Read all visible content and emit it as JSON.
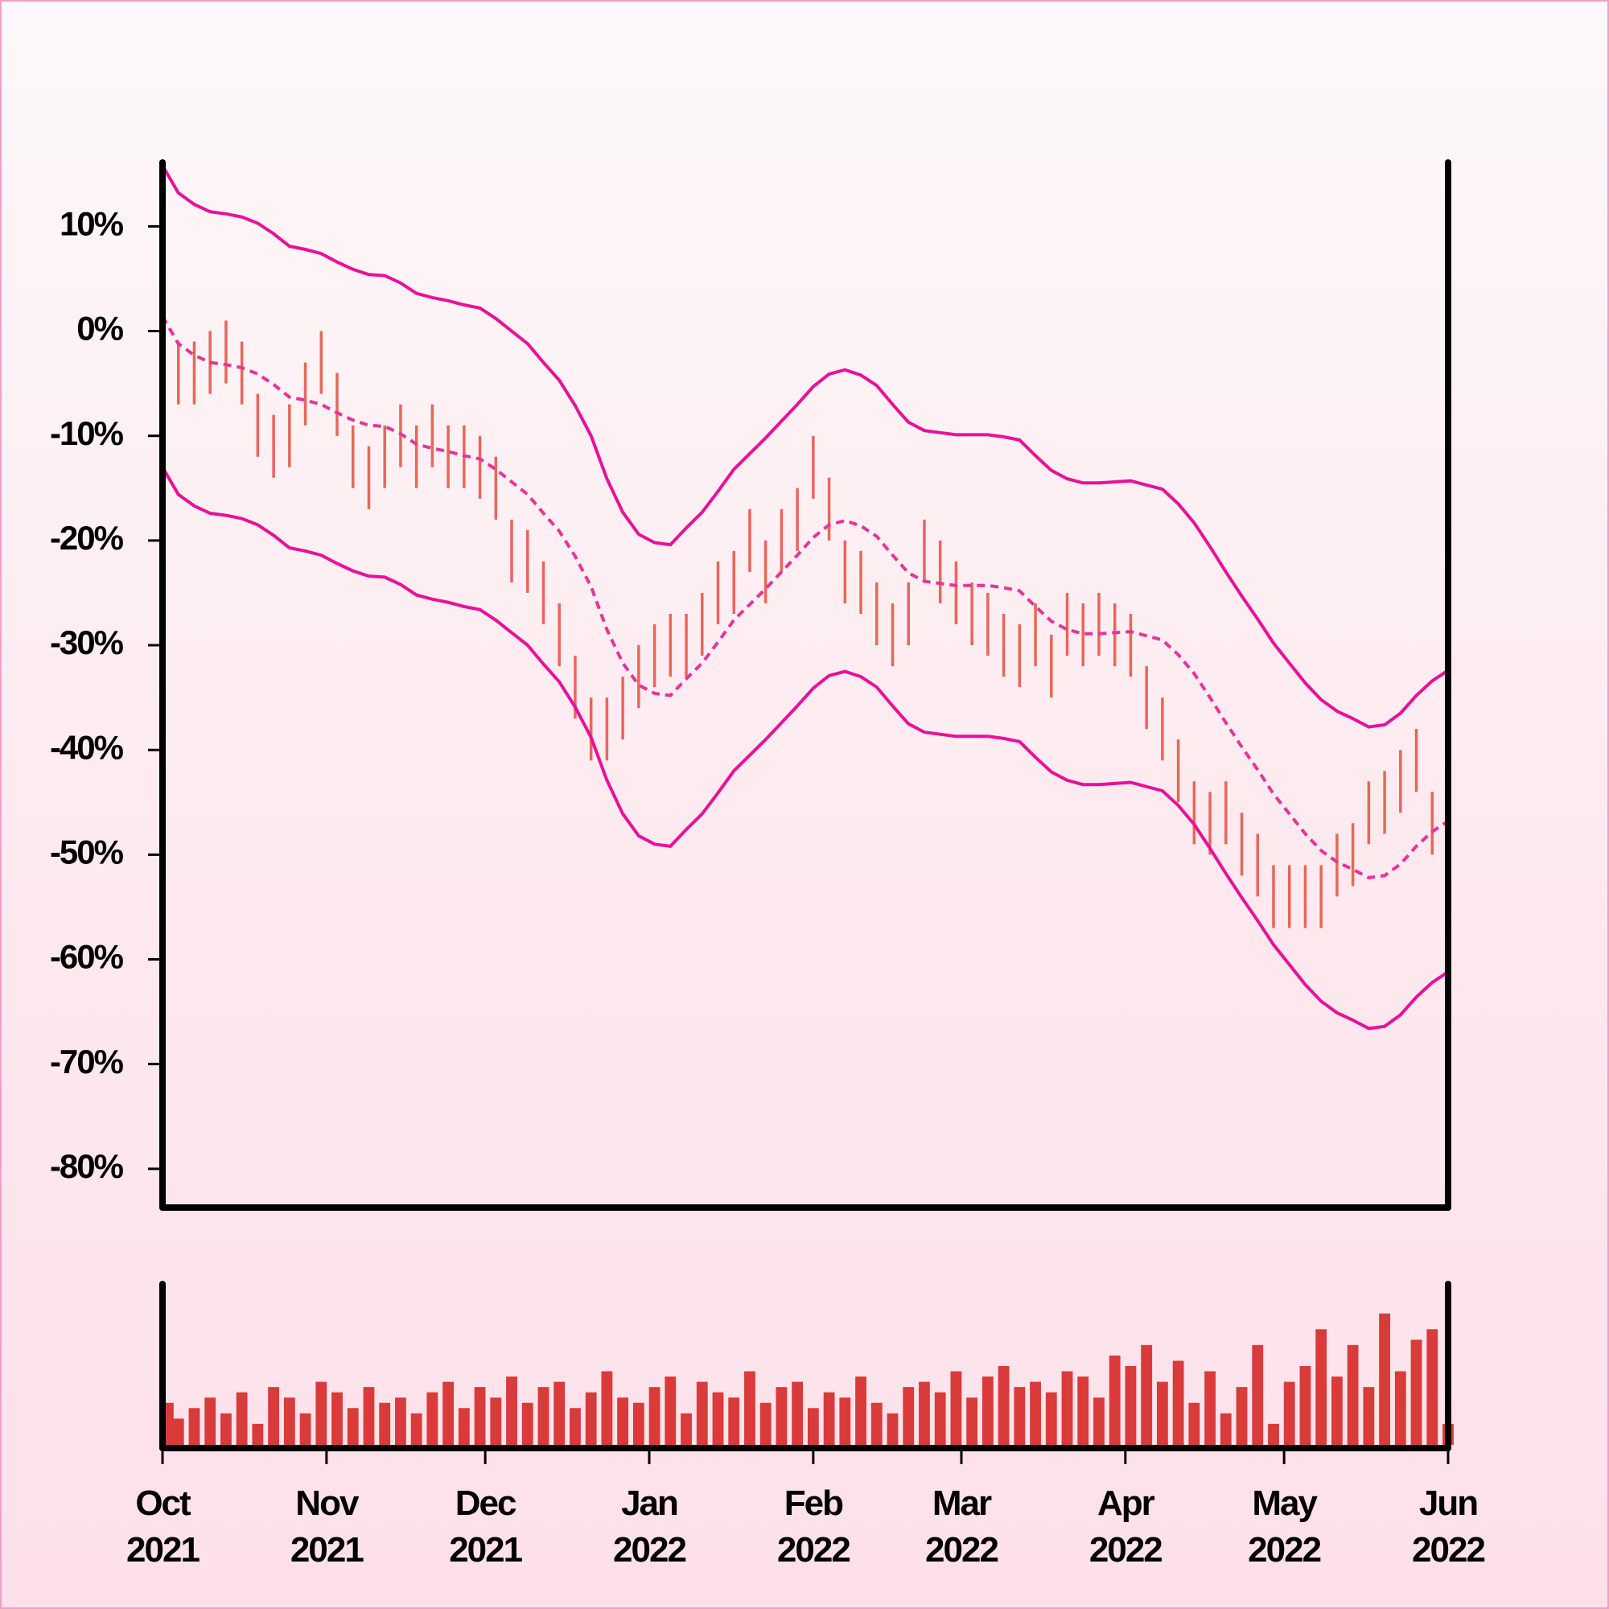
{
  "chart_data": {
    "type": "range",
    "xlim": [
      0,
      243
    ],
    "xticks": [
      {
        "value": 0,
        "label": "Oct\n2021"
      },
      {
        "value": 31,
        "label": "Nov\n2021"
      },
      {
        "value": 61,
        "label": "Dec\n2021"
      },
      {
        "value": 92,
        "label": "Jan\n2022"
      },
      {
        "value": 123,
        "label": "Feb\n2022"
      },
      {
        "value": 151,
        "label": "Mar\n2022"
      },
      {
        "value": 182,
        "label": "Apr\n2022"
      },
      {
        "value": 212,
        "label": "May\n2022"
      },
      {
        "value": 243,
        "label": "Jun\n2022"
      }
    ],
    "ylim": [
      -83.7,
      16.1
    ],
    "yticks": [
      {
        "value": 10,
        "label": "10%"
      },
      {
        "value": 0,
        "label": "0%"
      },
      {
        "value": -10,
        "label": "-10%"
      },
      {
        "value": -20,
        "label": "-20%"
      },
      {
        "value": -30,
        "label": "-30%"
      },
      {
        "value": -40,
        "label": "-40%"
      },
      {
        "value": -50,
        "label": "-50%"
      },
      {
        "value": -60,
        "label": "-60%"
      },
      {
        "value": -70,
        "label": "-70%"
      },
      {
        "value": -80,
        "label": "-80%"
      }
    ],
    "x": [
      0,
      3,
      6,
      9,
      12,
      15,
      18,
      21,
      24,
      27,
      30,
      33,
      36,
      39,
      42,
      45,
      48,
      51,
      54,
      57,
      60,
      63,
      66,
      69,
      72,
      75,
      78,
      81,
      84,
      87,
      90,
      93,
      96,
      99,
      102,
      105,
      108,
      111,
      114,
      117,
      120,
      123,
      126,
      129,
      132,
      135,
      138,
      141,
      144,
      147,
      150,
      153,
      156,
      159,
      162,
      165,
      168,
      171,
      174,
      177,
      180,
      183,
      186,
      189,
      192,
      195,
      198,
      201,
      204,
      207,
      210,
      213,
      216,
      219,
      222,
      225,
      228,
      231,
      234,
      237,
      240,
      243
    ],
    "color": "#e8665a",
    "low": [
      -4,
      -7,
      -7,
      -6,
      -5,
      -7,
      -12,
      -14,
      -13,
      -9,
      -6,
      -10,
      -15,
      -17,
      -15,
      -13,
      -15,
      -13,
      -15,
      -15,
      -16,
      -18,
      -24,
      -25,
      -28,
      -32,
      -37,
      -41,
      -41,
      -39,
      -36,
      -34,
      -33,
      -33,
      -31,
      -28,
      -27,
      -23,
      -26,
      -23,
      -21,
      -16,
      -20,
      -26,
      -27,
      -30,
      -32,
      -30,
      -24,
      -26,
      -28,
      -30,
      -31,
      -33,
      -34,
      -32,
      -35,
      -31,
      -32,
      -31,
      -32,
      -33,
      -38,
      -41,
      -45,
      -49,
      -50,
      -49,
      -52,
      -54,
      -57,
      -57,
      -57,
      -57,
      -54,
      -53,
      -49,
      -48,
      -46,
      -44,
      -50,
      -52
    ],
    "high": [
      2,
      -1,
      -1,
      0,
      1,
      -1,
      -6,
      -8,
      -7,
      -3,
      0,
      -4,
      -9,
      -11,
      -9,
      -7,
      -9,
      -7,
      -9,
      -9,
      -10,
      -12,
      -18,
      -19,
      -22,
      -26,
      -31,
      -35,
      -35,
      -33,
      -30,
      -28,
      -27,
      -27,
      -25,
      -22,
      -21,
      -17,
      -20,
      -17,
      -15,
      -10,
      -14,
      -20,
      -21,
      -24,
      -26,
      -24,
      -18,
      -20,
      -22,
      -24,
      -25,
      -27,
      -28,
      -26,
      -29,
      -25,
      -26,
      -25,
      -26,
      -27,
      -32,
      -35,
      -39,
      -43,
      -44,
      -43,
      -46,
      -48,
      -51,
      -51,
      -51,
      -51,
      -48,
      -47,
      -43,
      -42,
      -40,
      -38,
      -44,
      -46
    ],
    "lines": [
      {
        "color": "#e8119a",
        "dashed": false,
        "values": [
          15.8,
          13.2,
          12.1,
          11.4,
          11.2,
          10.9,
          10.3,
          9.3,
          8.1,
          7.8,
          7.4,
          6.6,
          5.9,
          5.4,
          5.3,
          4.6,
          3.6,
          3.2,
          2.9,
          2.5,
          2.2,
          1.2,
          0.0,
          -1.2,
          -3.0,
          -4.7,
          -7.1,
          -10.0,
          -14.1,
          -17.3,
          -19.4,
          -20.2,
          -20.4,
          -18.8,
          -17.3,
          -15.3,
          -13.2,
          -11.7,
          -10.2,
          -8.6,
          -7.0,
          -5.3,
          -4.1,
          -3.7,
          -4.2,
          -5.2,
          -7.0,
          -8.7,
          -9.5,
          -9.7,
          -9.9,
          -9.9,
          -9.9,
          -10.1,
          -10.4,
          -11.9,
          -13.3,
          -14.1,
          -14.5,
          -14.5,
          -14.4,
          -14.3,
          -14.7,
          -15.1,
          -16.5,
          -18.3,
          -20.6,
          -23.0,
          -25.3,
          -27.5,
          -29.8,
          -31.7,
          -33.6,
          -35.2,
          -36.3,
          -37.0,
          -37.8,
          -37.6,
          -36.5,
          -34.8,
          -33.4,
          -32.4
        ]
      },
      {
        "color": "#e8339a",
        "dashed": true,
        "values": [
          1.4,
          -1.2,
          -2.3,
          -3.0,
          -3.2,
          -3.5,
          -4.1,
          -5.1,
          -6.3,
          -6.6,
          -7.0,
          -7.8,
          -8.5,
          -9.0,
          -9.1,
          -9.8,
          -10.8,
          -11.2,
          -11.5,
          -11.9,
          -12.2,
          -13.2,
          -14.4,
          -15.6,
          -17.4,
          -19.1,
          -21.5,
          -24.4,
          -28.5,
          -31.7,
          -33.8,
          -34.6,
          -34.8,
          -33.2,
          -31.7,
          -29.7,
          -27.6,
          -26.1,
          -24.6,
          -23.0,
          -21.4,
          -19.7,
          -18.5,
          -18.1,
          -18.6,
          -19.6,
          -21.4,
          -23.1,
          -23.9,
          -24.1,
          -24.3,
          -24.3,
          -24.3,
          -24.5,
          -24.8,
          -26.3,
          -27.7,
          -28.5,
          -28.9,
          -28.9,
          -28.8,
          -28.7,
          -29.1,
          -29.5,
          -30.9,
          -32.7,
          -35.0,
          -37.4,
          -39.7,
          -41.9,
          -44.2,
          -46.1,
          -48.0,
          -49.6,
          -50.7,
          -51.4,
          -52.2,
          -52.0,
          -50.9,
          -49.2,
          -47.8,
          -46.8
        ]
      },
      {
        "color": "#e8119a",
        "dashed": false,
        "values": [
          -13.0,
          -15.6,
          -16.7,
          -17.4,
          -17.6,
          -17.9,
          -18.5,
          -19.5,
          -20.7,
          -21.0,
          -21.4,
          -22.2,
          -22.9,
          -23.4,
          -23.5,
          -24.2,
          -25.2,
          -25.6,
          -25.9,
          -26.3,
          -26.6,
          -27.6,
          -28.8,
          -30.0,
          -31.8,
          -33.5,
          -35.9,
          -38.8,
          -42.9,
          -46.1,
          -48.2,
          -49.0,
          -49.2,
          -47.6,
          -46.1,
          -44.1,
          -42.0,
          -40.5,
          -39.0,
          -37.4,
          -35.8,
          -34.1,
          -32.9,
          -32.5,
          -33.0,
          -34.0,
          -35.8,
          -37.5,
          -38.3,
          -38.5,
          -38.7,
          -38.7,
          -38.7,
          -38.9,
          -39.2,
          -40.7,
          -42.1,
          -42.9,
          -43.3,
          -43.3,
          -43.2,
          -43.1,
          -43.5,
          -43.9,
          -45.3,
          -47.1,
          -49.4,
          -51.8,
          -54.1,
          -56.3,
          -58.6,
          -60.5,
          -62.4,
          -64.0,
          -65.1,
          -65.8,
          -66.6,
          -66.4,
          -65.3,
          -63.6,
          -62.2,
          -61.2
        ]
      }
    ],
    "volume": {
      "color": "#d93a3a",
      "ylim": [
        0,
        150
      ],
      "values": [
        40,
        25,
        35,
        45,
        30,
        50,
        20,
        55,
        45,
        30,
        60,
        50,
        35,
        55,
        40,
        45,
        30,
        50,
        60,
        35,
        55,
        45,
        65,
        40,
        55,
        60,
        35,
        50,
        70,
        45,
        40,
        55,
        65,
        30,
        60,
        50,
        45,
        70,
        40,
        55,
        60,
        35,
        50,
        45,
        65,
        40,
        30,
        55,
        60,
        50,
        70,
        45,
        65,
        75,
        55,
        60,
        50,
        70,
        65,
        45,
        85,
        75,
        95,
        60,
        80,
        40,
        70,
        30,
        55,
        95,
        20,
        60,
        75,
        110,
        65,
        95,
        55,
        125,
        70,
        100,
        110,
        20
      ]
    }
  }
}
